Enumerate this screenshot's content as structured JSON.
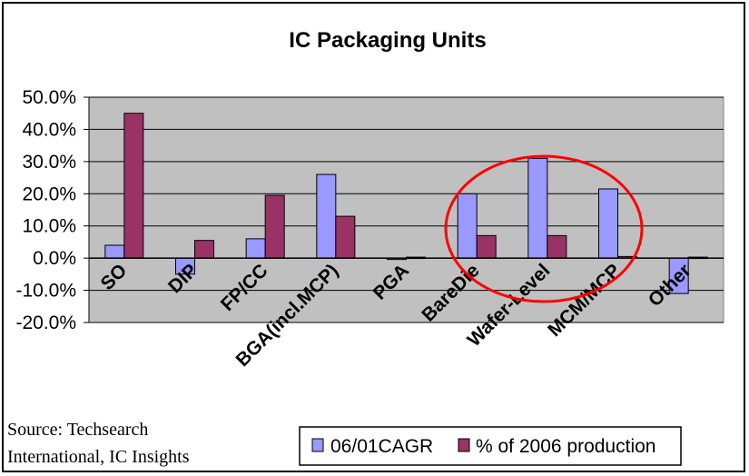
{
  "chart_data": {
    "type": "bar",
    "title": "IC Packaging Units",
    "categories": [
      "SO",
      "DIP",
      "FP/CC",
      "BGA(incl.MCP)",
      "PGA",
      "BareDie",
      "Wafer-Level",
      "MCM/MCP",
      "Other"
    ],
    "series": [
      {
        "name": "06/01CAGR",
        "values": [
          4,
          -5,
          6,
          26,
          0,
          20,
          31,
          21.5,
          -11
        ]
      },
      {
        "name": "% of 2006 production",
        "values": [
          45,
          5.5,
          19.5,
          13,
          0.3,
          7,
          7,
          0.5,
          0.3
        ]
      }
    ],
    "ylim": [
      -20,
      50
    ],
    "yticks": [
      "50.0%",
      "40.0%",
      "30.0%",
      "20.0%",
      "10.0%",
      "0.0%",
      "-10.0%",
      "-20.0%"
    ],
    "grid": true,
    "legend_position": "bottom-right",
    "colors": {
      "series1": "#9999ff",
      "series2": "#993366",
      "plot_bg": "#c0c0c0",
      "highlight": "#ff0000"
    },
    "annotation": "red ellipse highlighting BareDie, Wafer-Level and MCM/MCP"
  },
  "source_lines": [
    "Source: Techsearch",
    "International, IC Insights"
  ]
}
